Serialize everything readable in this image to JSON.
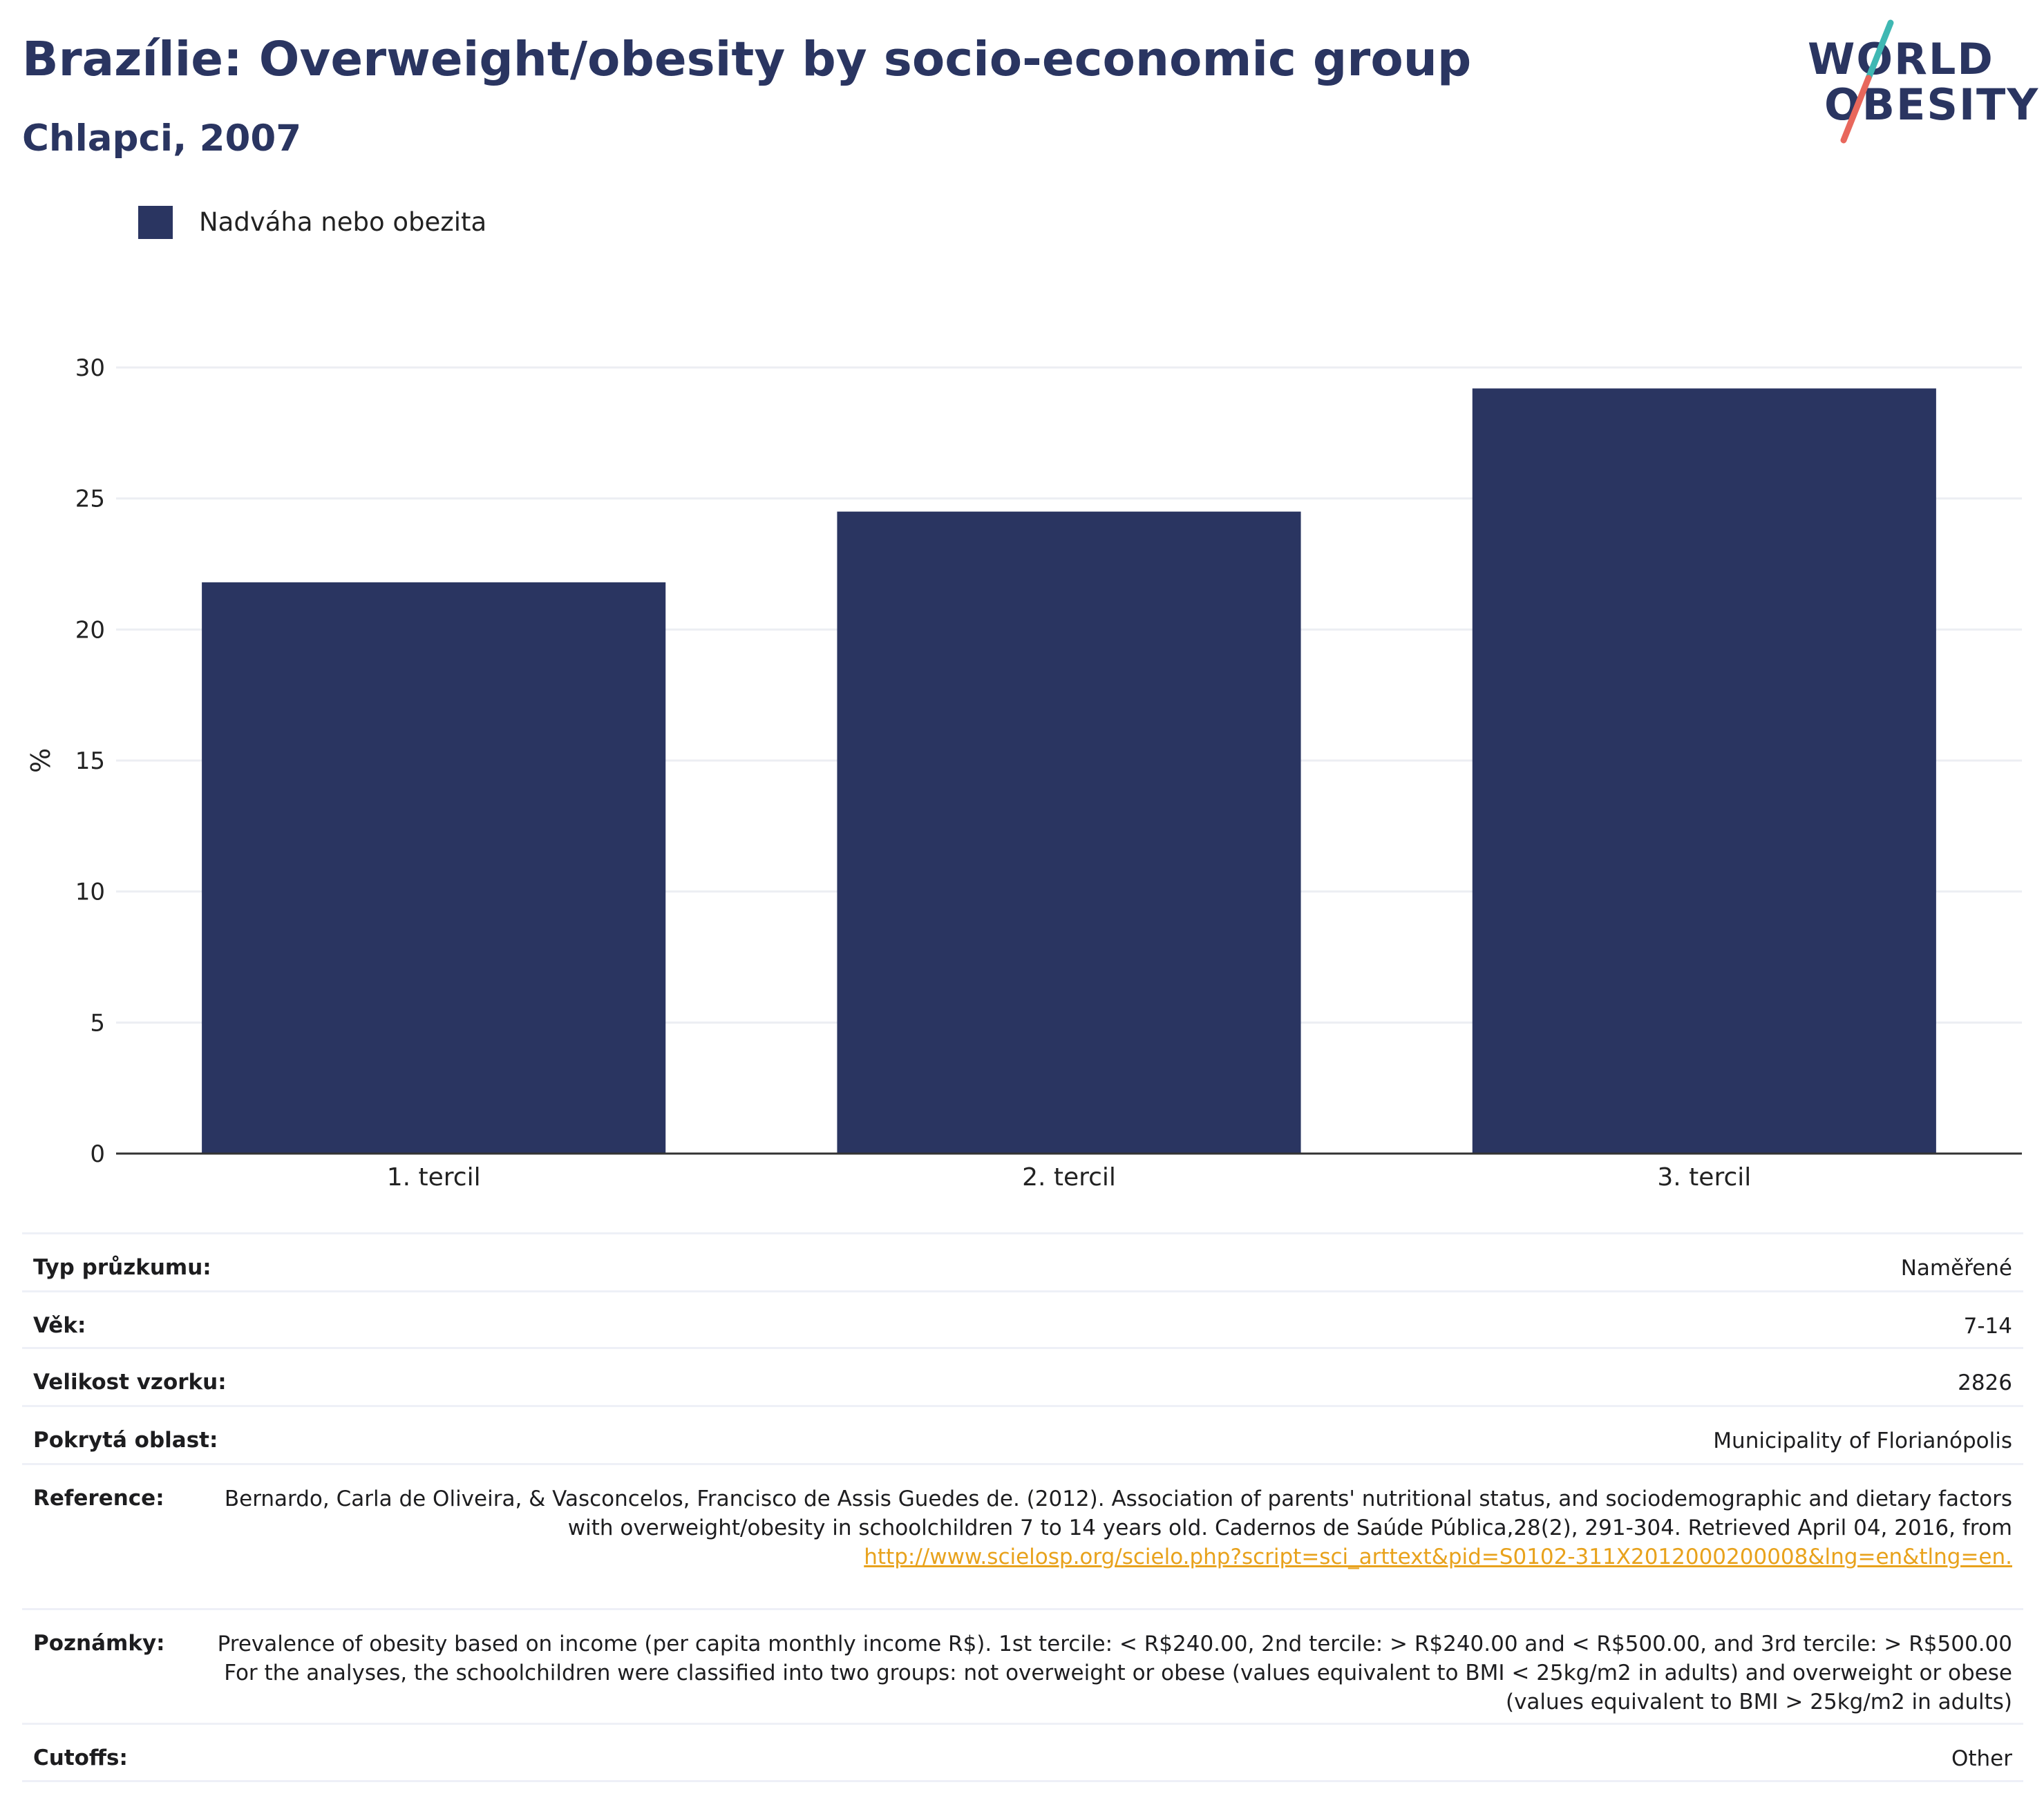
{
  "header": {
    "title": "Brazílie: Overweight/obesity by socio-economic group",
    "subtitle": "Chlapci, 2007"
  },
  "logo": {
    "line1": "WORLD",
    "line2": "OBESITY",
    "colors": {
      "text": "#2a3561",
      "slash_top": "#3fb8b3",
      "slash_bottom": "#e8675c"
    }
  },
  "colors": {
    "bar": "#2a3561",
    "grid": "#eceef3",
    "axis": "#333333",
    "link": "#e8a21c"
  },
  "chart_data": {
    "type": "bar",
    "categories": [
      "1. tercil",
      "2. tercil",
      "3. tercil"
    ],
    "series": [
      {
        "name": "Nadváha nebo obezita",
        "values": [
          21.8,
          24.5,
          29.2
        ]
      }
    ],
    "ylabel": "%",
    "ylim": [
      0,
      30
    ],
    "yticks": [
      0,
      5,
      10,
      15,
      20,
      25,
      30
    ],
    "grid": true,
    "legend_position": "top-left"
  },
  "info": [
    {
      "label": "Typ průzkumu:",
      "value": "Naměřené"
    },
    {
      "label": "Věk:",
      "value": "7-14"
    },
    {
      "label": "Velikost vzorku:",
      "value": "2826"
    },
    {
      "label": "Pokrytá oblast:",
      "value": "Municipality of Florianópolis"
    },
    {
      "label": "Reference:",
      "value": "Bernardo, Carla de Oliveira, & Vasconcelos, Francisco de Assis Guedes de. (2012). Association of parents' nutritional status, and sociodemographic and dietary factors with overweight/obesity in schoolchildren 7 to 14 years old. Cadernos de Saúde Pública,28(2), 291-304. Retrieved April 04, 2016, from",
      "link": "http://www.scielosp.org/scielo.php?script=sci_arttext&pid=S0102-311X2012000200008&lng=en&tlng=en."
    },
    {
      "label": "Poznámky:",
      "value": "Prevalence of obesity based on income (per capita monthly income R$). 1st tercile: < R$240.00, 2nd tercile: > R$240.00 and < R$500.00, and 3rd tercile: > R$500.00 For the analyses, the schoolchildren were classified into two groups: not overweight or obese (values equivalent to BMI < 25kg/m2 in adults) and overweight or obese (values equivalent to BMI > 25kg/m2 in adults)"
    },
    {
      "label": "Cutoffs:",
      "value": "Other"
    }
  ]
}
